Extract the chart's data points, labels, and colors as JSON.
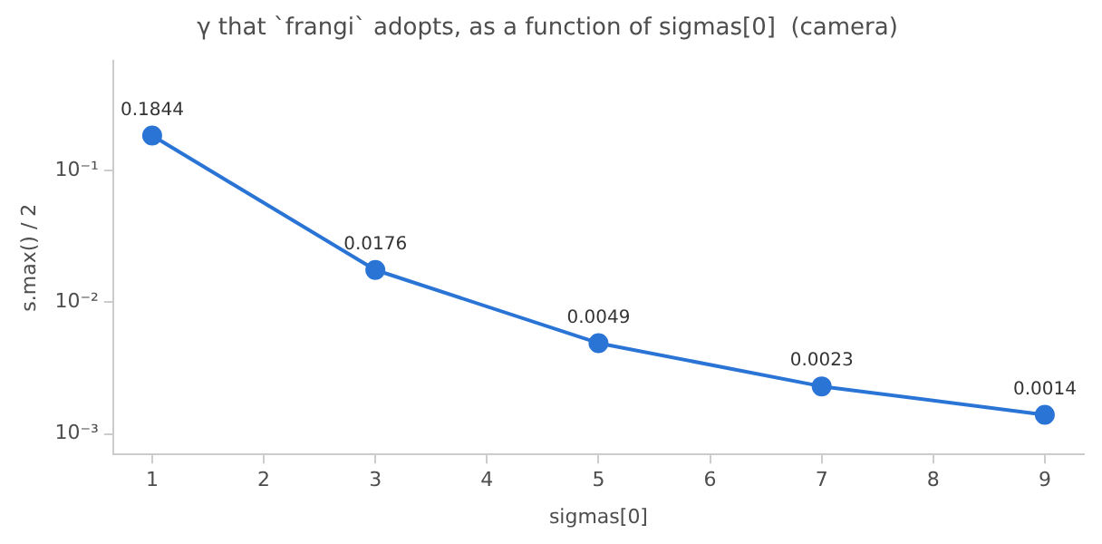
{
  "chart_data": {
    "type": "line",
    "title": "γ that `frangi` adopts, as a function of sigmas[0]  (camera)",
    "xlabel": "sigmas[0]",
    "ylabel": "s.max() / 2",
    "x": [
      1,
      3,
      5,
      7,
      9
    ],
    "series": [
      {
        "color": "#2a74d5",
        "values": [
          0.1844,
          0.0176,
          0.0049,
          0.0023,
          0.0014
        ]
      }
    ],
    "xlim": [
      0.65,
      9.35
    ],
    "xticks": [
      1,
      2,
      3,
      4,
      5,
      6,
      7,
      8,
      9
    ],
    "ylim": [
      0.0007,
      0.68
    ],
    "yticks": [
      {
        "value": 0.001,
        "label": "10⁻³"
      },
      {
        "value": 0.01,
        "label": "10⁻²"
      },
      {
        "value": 0.1,
        "label": "10⁻¹"
      }
    ],
    "log": "y",
    "grid": false,
    "legend": false,
    "marker": "circle",
    "line_style": "solid",
    "data_labels": true
  }
}
